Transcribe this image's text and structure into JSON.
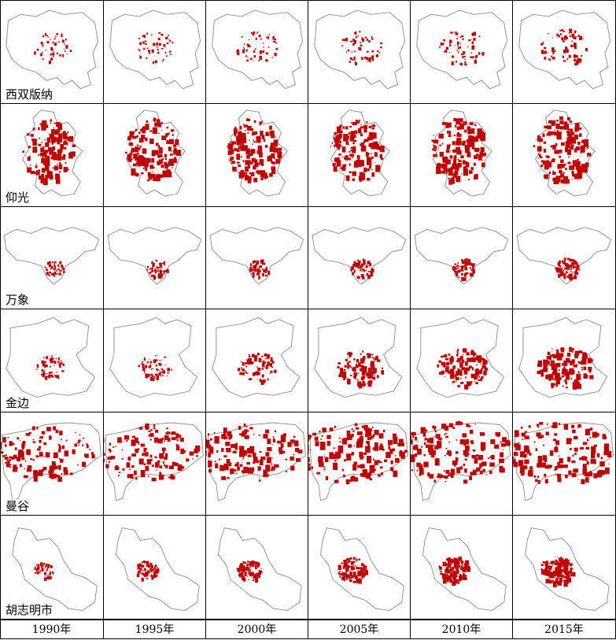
{
  "figure": {
    "rows": [
      {
        "city": "西双版纳",
        "key": "xishuangbanna"
      },
      {
        "city": "仰光",
        "key": "yangon"
      },
      {
        "city": "万象",
        "key": "vientiane"
      },
      {
        "city": "金边",
        "key": "phnompenh"
      },
      {
        "city": "曼谷",
        "key": "bangkok"
      },
      {
        "city": "胡志明市",
        "key": "hochiminh"
      }
    ],
    "years": [
      "1990年",
      "1995年",
      "2000年",
      "2005年",
      "2010年",
      "2015年"
    ],
    "colors": {
      "urban": "#c00000",
      "boundary": "#8c8c8c",
      "border": "#000000"
    },
    "urban_extent_level": {
      "xishuangbanna": [
        0.15,
        0.18,
        0.2,
        0.22,
        0.26,
        0.3
      ],
      "yangon": [
        0.75,
        0.78,
        0.8,
        0.82,
        0.84,
        0.86
      ],
      "vientiane": [
        0.2,
        0.22,
        0.25,
        0.28,
        0.32,
        0.36
      ],
      "phnompenh": [
        0.2,
        0.28,
        0.38,
        0.55,
        0.65,
        0.75
      ],
      "bangkok": [
        0.7,
        0.75,
        0.8,
        0.84,
        0.88,
        0.9
      ],
      "hochiminh": [
        0.2,
        0.28,
        0.4,
        0.5,
        0.6,
        0.65
      ]
    }
  }
}
